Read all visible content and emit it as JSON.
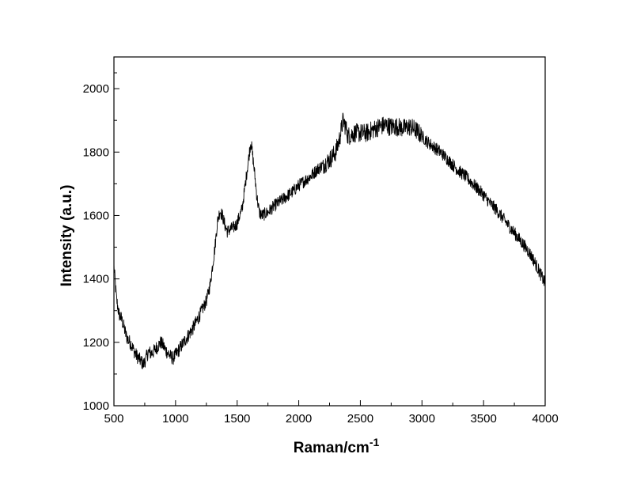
{
  "chart_data": {
    "type": "line",
    "title": "",
    "xlabel": "Raman/cm",
    "xlabel_superscript": "-1",
    "ylabel": "Intensity (a.u.)",
    "xlim": [
      500,
      4000
    ],
    "ylim": [
      1000,
      2100
    ],
    "x_ticks": [
      500,
      1000,
      1500,
      2000,
      2500,
      3000,
      3500,
      4000
    ],
    "y_ticks": [
      1000,
      1200,
      1400,
      1600,
      1800,
      2000
    ],
    "grid": false,
    "legend": "none",
    "line_color": "#000000",
    "series": [
      {
        "points": [
          [
            500,
            1440
          ],
          [
            520,
            1340
          ],
          [
            540,
            1290
          ],
          [
            560,
            1275
          ],
          [
            580,
            1250
          ],
          [
            600,
            1220
          ],
          [
            620,
            1205
          ],
          [
            640,
            1195
          ],
          [
            660,
            1175
          ],
          [
            680,
            1160
          ],
          [
            700,
            1150
          ],
          [
            720,
            1140
          ],
          [
            740,
            1130
          ],
          [
            760,
            1150
          ],
          [
            780,
            1170
          ],
          [
            800,
            1165
          ],
          [
            820,
            1170
          ],
          [
            840,
            1180
          ],
          [
            860,
            1190
          ],
          [
            880,
            1200
          ],
          [
            900,
            1190
          ],
          [
            920,
            1175
          ],
          [
            940,
            1165
          ],
          [
            960,
            1155
          ],
          [
            980,
            1150
          ],
          [
            1000,
            1160
          ],
          [
            1050,
            1190
          ],
          [
            1100,
            1220
          ],
          [
            1150,
            1250
          ],
          [
            1200,
            1290
          ],
          [
            1250,
            1330
          ],
          [
            1280,
            1380
          ],
          [
            1300,
            1440
          ],
          [
            1320,
            1500
          ],
          [
            1340,
            1580
          ],
          [
            1360,
            1615
          ],
          [
            1380,
            1600
          ],
          [
            1400,
            1570
          ],
          [
            1420,
            1550
          ],
          [
            1440,
            1555
          ],
          [
            1460,
            1560
          ],
          [
            1480,
            1565
          ],
          [
            1500,
            1575
          ],
          [
            1520,
            1600
          ],
          [
            1540,
            1620
          ],
          [
            1560,
            1680
          ],
          [
            1580,
            1740
          ],
          [
            1600,
            1800
          ],
          [
            1610,
            1830
          ],
          [
            1620,
            1810
          ],
          [
            1640,
            1740
          ],
          [
            1660,
            1660
          ],
          [
            1680,
            1610
          ],
          [
            1700,
            1600
          ],
          [
            1750,
            1610
          ],
          [
            1800,
            1630
          ],
          [
            1850,
            1645
          ],
          [
            1900,
            1660
          ],
          [
            1950,
            1675
          ],
          [
            2000,
            1695
          ],
          [
            2050,
            1710
          ],
          [
            2100,
            1725
          ],
          [
            2150,
            1745
          ],
          [
            2200,
            1760
          ],
          [
            2250,
            1775
          ],
          [
            2300,
            1800
          ],
          [
            2330,
            1840
          ],
          [
            2360,
            1900
          ],
          [
            2380,
            1880
          ],
          [
            2400,
            1850
          ],
          [
            2450,
            1860
          ],
          [
            2500,
            1860
          ],
          [
            2550,
            1860
          ],
          [
            2600,
            1870
          ],
          [
            2650,
            1880
          ],
          [
            2700,
            1885
          ],
          [
            2750,
            1880
          ],
          [
            2800,
            1880
          ],
          [
            2850,
            1875
          ],
          [
            2900,
            1880
          ],
          [
            2950,
            1870
          ],
          [
            3000,
            1850
          ],
          [
            3050,
            1830
          ],
          [
            3100,
            1815
          ],
          [
            3150,
            1800
          ],
          [
            3200,
            1780
          ],
          [
            3250,
            1760
          ],
          [
            3300,
            1740
          ],
          [
            3350,
            1725
          ],
          [
            3400,
            1705
          ],
          [
            3450,
            1685
          ],
          [
            3500,
            1665
          ],
          [
            3550,
            1640
          ],
          [
            3600,
            1620
          ],
          [
            3650,
            1595
          ],
          [
            3700,
            1570
          ],
          [
            3750,
            1545
          ],
          [
            3800,
            1520
          ],
          [
            3850,
            1495
          ],
          [
            3900,
            1465
          ],
          [
            3950,
            1425
          ],
          [
            4000,
            1385
          ]
        ]
      }
    ]
  }
}
